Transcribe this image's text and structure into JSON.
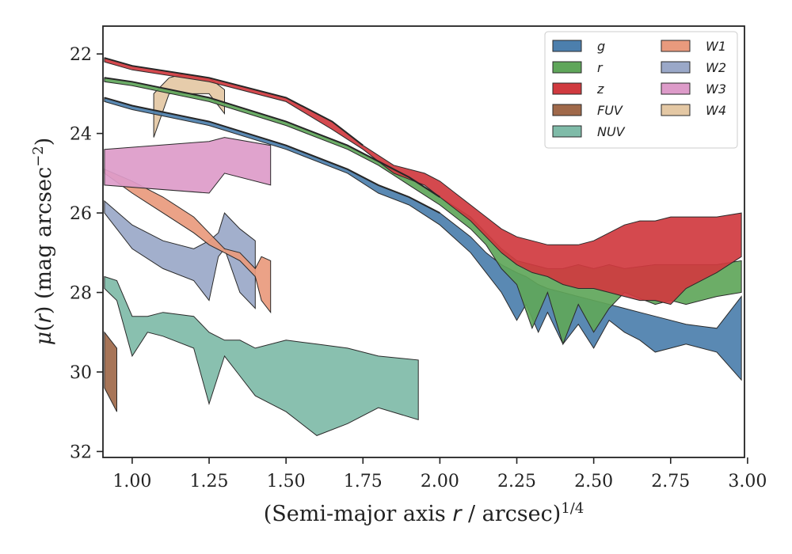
{
  "chart_data": {
    "type": "area",
    "xlabel_html": "(Semi-major axis <tspan font-style='italic' font-family='DejaVu Sans, sans-serif'>r</tspan> / arcsec)<tspan dy='-10' font-size='18'>1/4</tspan>",
    "ylabel_html": "<tspan font-style='italic'>μ</tspan>(<tspan font-style='italic' font-family='DejaVu Sans, sans-serif'>r</tspan>) (mag arcsec<tspan dy='-10' font-size='18'>−2</tspan><tspan dy='10'>)</tspan>",
    "xlim": [
      0.905,
      2.99
    ],
    "ylim": [
      32.15,
      21.3
    ],
    "y_inverted": true,
    "grid": false,
    "legend_position": "top-right",
    "xticks": [
      "1.00",
      "1.25",
      "1.50",
      "1.75",
      "2.00",
      "2.25",
      "2.50",
      "2.75",
      "3.00"
    ],
    "xtick_values": [
      1.0,
      1.25,
      1.5,
      1.75,
      2.0,
      2.25,
      2.5,
      2.75,
      3.0
    ],
    "yticks": [
      "22",
      "24",
      "26",
      "28",
      "30",
      "32"
    ],
    "ytick_values": [
      22,
      24,
      26,
      28,
      30,
      32
    ],
    "series": [
      {
        "name": "g",
        "color": "#4c7fad",
        "x": [
          0.91,
          1.0,
          1.25,
          1.5,
          1.7,
          1.8,
          1.9,
          2.0,
          2.1,
          2.15,
          2.2,
          2.25,
          2.28,
          2.32,
          2.35,
          2.4,
          2.45,
          2.5,
          2.55,
          2.6,
          2.65,
          2.7,
          2.75,
          2.8,
          2.9,
          2.98
        ],
        "y_bright": [
          23.1,
          23.3,
          23.7,
          24.3,
          24.9,
          25.3,
          25.6,
          26.0,
          26.6,
          27.0,
          27.3,
          27.5,
          27.6,
          27.8,
          27.9,
          28.0,
          28.1,
          28.2,
          28.3,
          28.4,
          28.5,
          28.6,
          28.7,
          28.8,
          28.9,
          28.1
        ],
        "y_faint": [
          23.2,
          23.4,
          23.8,
          24.4,
          25.0,
          25.5,
          25.8,
          26.3,
          27.0,
          27.5,
          28.0,
          28.7,
          28.3,
          29.0,
          28.5,
          29.3,
          28.8,
          29.4,
          28.7,
          29.0,
          29.2,
          29.5,
          29.4,
          29.3,
          29.5,
          30.2
        ]
      },
      {
        "name": "r",
        "color": "#5fa65a",
        "x": [
          0.91,
          1.0,
          1.25,
          1.5,
          1.7,
          1.8,
          1.9,
          2.0,
          2.1,
          2.15,
          2.2,
          2.25,
          2.3,
          2.35,
          2.4,
          2.45,
          2.5,
          2.55,
          2.6,
          2.7,
          2.75,
          2.8,
          2.9,
          2.98
        ],
        "y_bright": [
          22.6,
          22.7,
          23.1,
          23.7,
          24.3,
          24.7,
          25.1,
          25.6,
          26.1,
          26.5,
          26.9,
          27.2,
          27.3,
          27.4,
          27.4,
          27.3,
          27.4,
          27.3,
          27.4,
          27.3,
          27.3,
          27.3,
          27.3,
          27.2
        ],
        "y_faint": [
          22.7,
          22.8,
          23.2,
          23.8,
          24.4,
          24.8,
          25.3,
          25.8,
          26.4,
          26.8,
          27.4,
          27.8,
          28.9,
          28.0,
          29.3,
          28.3,
          29.0,
          28.4,
          28.0,
          28.3,
          28.2,
          28.3,
          28.1,
          28.0
        ]
      },
      {
        "name": "z",
        "color": "#d03a3f",
        "x": [
          0.91,
          1.0,
          1.25,
          1.5,
          1.65,
          1.75,
          1.85,
          1.95,
          2.0,
          2.05,
          2.1,
          2.15,
          2.2,
          2.25,
          2.3,
          2.35,
          2.4,
          2.45,
          2.5,
          2.55,
          2.6,
          2.65,
          2.7,
          2.75,
          2.8,
          2.9,
          2.98
        ],
        "y_bright": [
          22.1,
          22.3,
          22.6,
          23.1,
          23.7,
          24.3,
          24.8,
          25.0,
          25.2,
          25.5,
          25.8,
          26.1,
          26.4,
          26.6,
          26.7,
          26.8,
          26.8,
          26.8,
          26.7,
          26.5,
          26.3,
          26.2,
          26.2,
          26.1,
          26.1,
          26.1,
          26.0
        ],
        "y_faint": [
          22.2,
          22.4,
          22.7,
          23.2,
          23.9,
          24.4,
          25.0,
          25.3,
          25.6,
          25.9,
          26.2,
          26.6,
          27.0,
          27.3,
          27.5,
          27.6,
          27.8,
          27.9,
          27.9,
          28.0,
          28.1,
          28.2,
          28.2,
          28.3,
          27.9,
          27.5,
          27.1
        ]
      },
      {
        "name": "FUV",
        "color": "#a0694a",
        "x": [
          0.91,
          0.95
        ],
        "y_bright": [
          29.0,
          29.4
        ],
        "y_faint": [
          30.4,
          31.0
        ]
      },
      {
        "name": "NUV",
        "color": "#7fbba8",
        "x": [
          0.91,
          0.95,
          1.0,
          1.05,
          1.1,
          1.2,
          1.25,
          1.3,
          1.35,
          1.4,
          1.5,
          1.6,
          1.7,
          1.8,
          1.93
        ],
        "y_bright": [
          27.6,
          27.7,
          28.6,
          28.6,
          28.5,
          28.6,
          29.0,
          29.2,
          29.2,
          29.4,
          29.2,
          29.3,
          29.4,
          29.6,
          29.7
        ],
        "y_faint": [
          27.9,
          28.2,
          29.6,
          29.0,
          29.1,
          29.4,
          30.8,
          29.6,
          30.1,
          30.6,
          31.0,
          31.6,
          31.3,
          30.9,
          31.2
        ]
      },
      {
        "name": "W1",
        "color": "#e99a7d",
        "x": [
          0.91,
          1.0,
          1.1,
          1.2,
          1.25,
          1.3,
          1.35,
          1.4,
          1.42,
          1.45
        ],
        "y_bright": [
          24.9,
          25.2,
          25.6,
          26.1,
          26.5,
          26.9,
          27.0,
          27.4,
          27.1,
          27.2
        ],
        "y_faint": [
          25.0,
          25.5,
          26.0,
          26.5,
          26.8,
          27.0,
          27.2,
          27.6,
          28.2,
          28.5
        ]
      },
      {
        "name": "W2",
        "color": "#9aa8c8",
        "x": [
          0.91,
          1.0,
          1.1,
          1.2,
          1.25,
          1.28,
          1.3,
          1.35,
          1.4
        ],
        "y_bright": [
          25.7,
          26.3,
          26.7,
          26.9,
          26.7,
          26.5,
          26.0,
          26.4,
          26.7
        ],
        "y_faint": [
          26.0,
          26.9,
          27.4,
          27.7,
          28.2,
          27.1,
          26.9,
          28.0,
          28.4
        ]
      },
      {
        "name": "W3",
        "color": "#dd9bc9",
        "x": [
          0.91,
          1.25,
          1.3,
          1.45
        ],
        "y_bright": [
          24.4,
          24.2,
          24.1,
          24.3
        ],
        "y_faint": [
          25.3,
          25.5,
          25.0,
          25.3
        ]
      },
      {
        "name": "W4",
        "color": "#e4c8a4",
        "x": [
          1.07,
          1.12,
          1.17,
          1.25,
          1.3
        ],
        "y_bright": [
          23.0,
          22.6,
          22.5,
          22.6,
          22.9
        ],
        "y_faint": [
          24.1,
          23.0,
          23.0,
          23.0,
          23.5
        ]
      }
    ],
    "center_lines": [
      {
        "name": "g",
        "x": [
          0.91,
          1.0,
          1.25,
          1.5,
          1.7,
          1.8,
          1.9,
          2.0
        ],
        "y": [
          23.1,
          23.3,
          23.7,
          24.3,
          24.9,
          25.3,
          25.6,
          26.0
        ]
      },
      {
        "name": "r",
        "x": [
          0.91,
          1.0,
          1.25,
          1.5,
          1.7,
          1.8,
          1.9,
          2.0
        ],
        "y": [
          22.6,
          22.7,
          23.1,
          23.7,
          24.3,
          24.7,
          25.1,
          25.6
        ]
      },
      {
        "name": "z",
        "x": [
          0.91,
          1.0,
          1.25,
          1.5,
          1.65,
          1.75
        ],
        "y": [
          22.1,
          22.3,
          22.6,
          23.1,
          23.7,
          24.3
        ]
      }
    ],
    "legend": {
      "columns": [
        [
          "g",
          "r",
          "z",
          "FUV",
          "NUV"
        ],
        [
          "W1",
          "W2",
          "W3",
          "W4"
        ]
      ]
    }
  }
}
